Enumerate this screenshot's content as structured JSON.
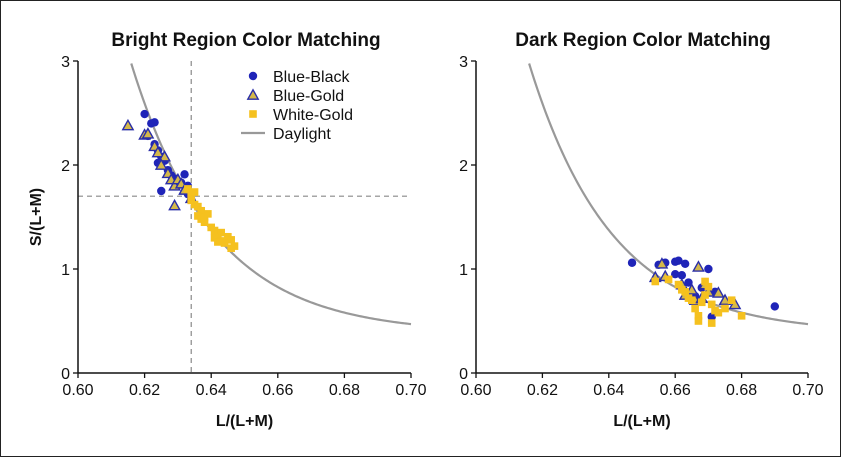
{
  "colors": {
    "blue_black": "#1f24b8",
    "blue_gold_fill": "#d4b84a",
    "blue_gold_edge": "#2a2ea8",
    "white_gold": "#f5c11f",
    "daylight": "#999999",
    "axis": "#111111",
    "dashed": "#888888"
  },
  "chart_data": [
    {
      "type": "scatter",
      "title": "Bright Region Color Matching",
      "xlabel": "L/(L+M)",
      "ylabel": "S/(L+M)",
      "xlim": [
        0.6,
        0.7
      ],
      "ylim": [
        0,
        3
      ],
      "x_ticks": [
        "0.60",
        "0.62",
        "0.64",
        "0.66",
        "0.68",
        "0.70"
      ],
      "y_ticks": [
        "0",
        "1",
        "2",
        "3"
      ],
      "legend_position": "top-right",
      "reference_lines": {
        "x": 0.634,
        "y": 1.7
      },
      "legend": [
        "Blue-Black",
        "Blue-Gold",
        "White-Gold",
        "Daylight"
      ],
      "series": [
        {
          "name": "Blue-Black",
          "marker": "circle",
          "points": [
            [
              0.62,
              2.49
            ],
            [
              0.622,
              2.4
            ],
            [
              0.623,
              2.41
            ],
            [
              0.621,
              2.28
            ],
            [
              0.623,
              2.2
            ],
            [
              0.624,
              2.14
            ],
            [
              0.625,
              2.08
            ],
            [
              0.626,
              2.04
            ],
            [
              0.624,
              2.02
            ],
            [
              0.627,
              1.95
            ],
            [
              0.628,
              1.9
            ],
            [
              0.629,
              1.87
            ],
            [
              0.631,
              1.83
            ],
            [
              0.632,
              1.91
            ],
            [
              0.633,
              1.8
            ],
            [
              0.633,
              1.72
            ],
            [
              0.634,
              1.67
            ],
            [
              0.625,
              1.75
            ]
          ]
        },
        {
          "name": "Blue-Gold",
          "marker": "triangle",
          "points": [
            [
              0.615,
              2.38
            ],
            [
              0.62,
              2.29
            ],
            [
              0.621,
              2.3
            ],
            [
              0.623,
              2.18
            ],
            [
              0.624,
              2.12
            ],
            [
              0.626,
              2.08
            ],
            [
              0.625,
              2.0
            ],
            [
              0.627,
              1.92
            ],
            [
              0.628,
              1.86
            ],
            [
              0.629,
              1.8
            ],
            [
              0.63,
              1.86
            ],
            [
              0.631,
              1.82
            ],
            [
              0.632,
              1.76
            ],
            [
              0.634,
              1.68
            ],
            [
              0.629,
              1.61
            ]
          ]
        },
        {
          "name": "White-Gold",
          "marker": "square",
          "points": [
            [
              0.633,
              1.77
            ],
            [
              0.634,
              1.73
            ],
            [
              0.635,
              1.74
            ],
            [
              0.634,
              1.66
            ],
            [
              0.635,
              1.62
            ],
            [
              0.636,
              1.6
            ],
            [
              0.637,
              1.56
            ],
            [
              0.636,
              1.51
            ],
            [
              0.637,
              1.48
            ],
            [
              0.638,
              1.5
            ],
            [
              0.638,
              1.45
            ],
            [
              0.639,
              1.53
            ],
            [
              0.64,
              1.4
            ],
            [
              0.641,
              1.37
            ],
            [
              0.642,
              1.33
            ],
            [
              0.643,
              1.35
            ],
            [
              0.641,
              1.3
            ],
            [
              0.643,
              1.27
            ],
            [
              0.645,
              1.31
            ],
            [
              0.646,
              1.28
            ],
            [
              0.644,
              1.25
            ],
            [
              0.647,
              1.22
            ],
            [
              0.646,
              1.2
            ],
            [
              0.642,
              1.26
            ]
          ]
        }
      ]
    },
    {
      "type": "scatter",
      "title": "Dark Region Color Matching",
      "xlabel": "L/(L+M)",
      "ylabel": "",
      "xlim": [
        0.6,
        0.7
      ],
      "ylim": [
        0,
        3
      ],
      "x_ticks": [
        "0.60",
        "0.62",
        "0.64",
        "0.66",
        "0.68",
        "0.70"
      ],
      "y_ticks": [
        "0",
        "1",
        "2",
        "3"
      ],
      "series": [
        {
          "name": "Blue-Black",
          "marker": "circle",
          "points": [
            [
              0.647,
              1.06
            ],
            [
              0.655,
              1.04
            ],
            [
              0.657,
              1.06
            ],
            [
              0.66,
              1.07
            ],
            [
              0.661,
              1.08
            ],
            [
              0.663,
              1.05
            ],
            [
              0.66,
              0.95
            ],
            [
              0.662,
              0.94
            ],
            [
              0.67,
              1.0
            ],
            [
              0.668,
              0.82
            ],
            [
              0.672,
              0.78
            ],
            [
              0.666,
              0.74
            ],
            [
              0.665,
              0.7
            ],
            [
              0.671,
              0.54
            ],
            [
              0.69,
              0.64
            ],
            [
              0.664,
              0.87
            ]
          ]
        },
        {
          "name": "Blue-Gold",
          "marker": "triangle",
          "points": [
            [
              0.654,
              0.92
            ],
            [
              0.656,
              1.05
            ],
            [
              0.657,
              0.93
            ],
            [
              0.662,
              0.85
            ],
            [
              0.665,
              0.8
            ],
            [
              0.667,
              1.02
            ],
            [
              0.669,
              0.85
            ],
            [
              0.67,
              0.78
            ],
            [
              0.673,
              0.77
            ],
            [
              0.675,
              0.7
            ],
            [
              0.678,
              0.66
            ],
            [
              0.666,
              0.7
            ],
            [
              0.668,
              0.72
            ],
            [
              0.663,
              0.75
            ]
          ]
        },
        {
          "name": "White-Gold",
          "marker": "square",
          "points": [
            [
              0.654,
              0.88
            ],
            [
              0.658,
              0.9
            ],
            [
              0.661,
              0.85
            ],
            [
              0.663,
              0.78
            ],
            [
              0.664,
              0.72
            ],
            [
              0.665,
              0.7
            ],
            [
              0.666,
              0.62
            ],
            [
              0.667,
              0.55
            ],
            [
              0.668,
              0.68
            ],
            [
              0.669,
              0.75
            ],
            [
              0.67,
              0.83
            ],
            [
              0.671,
              0.66
            ],
            [
              0.672,
              0.6
            ],
            [
              0.673,
              0.58
            ],
            [
              0.675,
              0.62
            ],
            [
              0.677,
              0.7
            ],
            [
              0.68,
              0.55
            ],
            [
              0.671,
              0.48
            ],
            [
              0.667,
              0.5
            ],
            [
              0.662,
              0.8
            ],
            [
              0.669,
              0.88
            ]
          ]
        }
      ]
    }
  ]
}
